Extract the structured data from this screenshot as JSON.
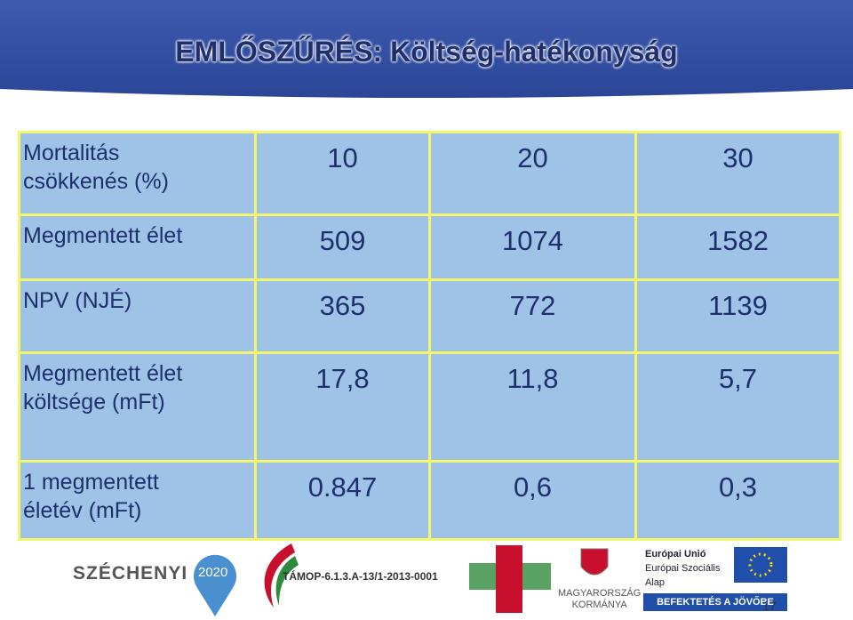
{
  "header": {
    "title": "EMLŐSZŰRÉS: Költség-hatékonyság"
  },
  "table": {
    "rows": [
      {
        "label": [
          "Mortalitás",
          "csökkenés (%)"
        ],
        "values": [
          10,
          20,
          30
        ]
      },
      {
        "label": [
          "Megmentett  élet"
        ],
        "values": [
          509,
          1074,
          1582
        ]
      },
      {
        "label": [
          "NPV (NJÉ)"
        ],
        "values": [
          365,
          772,
          1139
        ]
      },
      {
        "label": [
          "Megmentett élet",
          "költsége (mFt)"
        ],
        "values": [
          "17,8",
          "11,8",
          "5,7"
        ]
      },
      {
        "label": [
          "1 megmentett",
          "életév (mFt)"
        ],
        "values": [
          "0.847",
          "0,6",
          "0,3"
        ]
      }
    ]
  },
  "footer": {
    "szechenyi": "SZÉCHENYI",
    "year": "2020",
    "project": "TÁMOP-6.1.3.A-13/1-2013-0001",
    "gov": [
      "MAGYARORSZÁG",
      "KORMÁNYA"
    ],
    "eu": [
      "Európai Unió",
      "Európai Szociális",
      "Alap"
    ],
    "slogan": "BEFEKTETÉS A JÖVŐBE",
    "page": "17"
  }
}
